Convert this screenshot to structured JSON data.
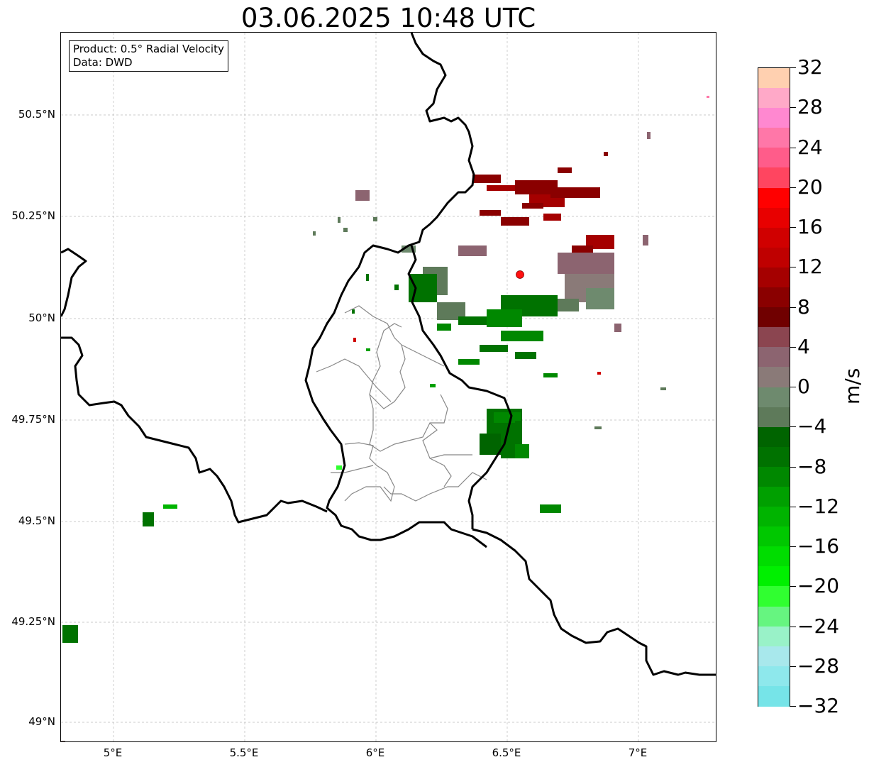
{
  "title": "03.06.2025 10:48 UTC",
  "info_box": {
    "product": "Product: 0.5° Radial Velocity",
    "data": "Data: DWD"
  },
  "map": {
    "lat_labels": [
      "50.5°N",
      "50.25°N",
      "50°N",
      "49.75°N",
      "49.5°N",
      "49.25°N",
      "49°N"
    ],
    "lon_labels": [
      "5°E",
      "5.5°E",
      "6°E",
      "6.5°E",
      "7°E"
    ],
    "extent": {
      "lon_min": 4.8,
      "lon_max": 7.3,
      "lat_min": 48.95,
      "lat_max": 50.7
    },
    "radar_site": {
      "lon": 6.547,
      "lat": 50.11,
      "color": "#ff1111"
    },
    "border_color": "#000000",
    "admin_color": "#888888"
  },
  "colorbar": {
    "unit": "m/s",
    "min": -32,
    "max": 32,
    "tick_labels": [
      "32",
      "28",
      "24",
      "20",
      "16",
      "12",
      "8",
      "4",
      "0",
      "−4",
      "−8",
      "−12",
      "−16",
      "−20",
      "−24",
      "−28",
      "−32"
    ],
    "colors_top_to_bottom": [
      "#ffd0b0",
      "#ffa9c8",
      "#ff88d0",
      "#ff77a8",
      "#ff5c8a",
      "#ff4560",
      "#ff0000",
      "#e80000",
      "#d00000",
      "#bf0000",
      "#a50000",
      "#8a0000",
      "#700000",
      "#8b4550",
      "#8c6470",
      "#8a7a78",
      "#6e8a6e",
      "#5e7a5a",
      "#006400",
      "#007200",
      "#008800",
      "#00a000",
      "#00b400",
      "#00c800",
      "#00dd00",
      "#00f000",
      "#30ff30",
      "#66f580",
      "#99f2c8",
      "#a8e8ec",
      "#8ee8ec",
      "#76e4e8"
    ]
  }
}
